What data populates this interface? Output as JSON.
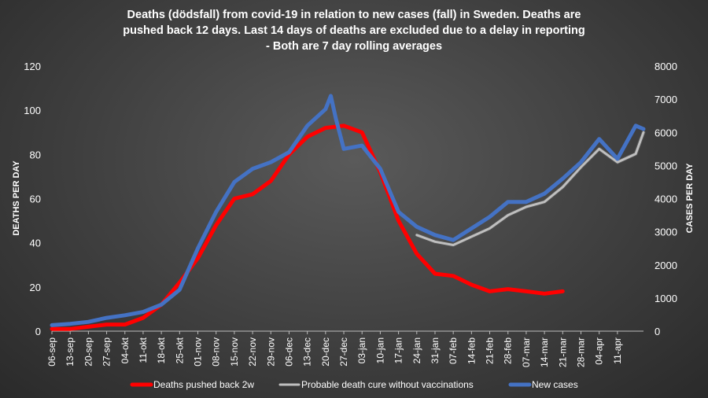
{
  "chart_data": {
    "type": "line",
    "title_lines": [
      "Deaths (dödsfall) from covid-19 in relation to new cases (fall) in Sweden. Deaths are",
      "pushed back 12 days. Last 14 days of deaths are excluded due to a delay in reporting",
      "- Both are 7 day rolling averages"
    ],
    "ylabel_left": "DEATHS PER DAY",
    "ylabel_right": "CASES PER DAY",
    "ylim_left": [
      0,
      120
    ],
    "ylim_right": [
      0,
      8000
    ],
    "yticks_left": [
      "0",
      "20",
      "40",
      "60",
      "80",
      "100",
      "120"
    ],
    "yticks_right": [
      "0",
      "1000",
      "2000",
      "3000",
      "4000",
      "5000",
      "6000",
      "7000",
      "8000"
    ],
    "xticks": [
      "06-sep",
      "13-sep",
      "20-sep",
      "27-sep",
      "04-okt",
      "11-okt",
      "18-okt",
      "25-okt",
      "01-nov",
      "08-nov",
      "15-nov",
      "22-nov",
      "29-nov",
      "06-dec",
      "13-dec",
      "20-dec",
      "27-dec",
      "03-jan",
      "10-jan",
      "17-jan",
      "24-jan",
      "31-jan",
      "07-feb",
      "14-feb",
      "21-feb",
      "28-feb",
      "07-mar",
      "14-mar",
      "21-mar",
      "28-mar",
      "04-apr",
      "11-apr"
    ],
    "grid": false,
    "legend_position": "bottom",
    "series": [
      {
        "name": "Deaths pushed back 2w",
        "axis": "left",
        "color": "#ff0000",
        "x": [
          0,
          7,
          14,
          21,
          28,
          35,
          42,
          49,
          56,
          63,
          70,
          77,
          84,
          91,
          98,
          105,
          112,
          119,
          126,
          133,
          140,
          147,
          154,
          161,
          168,
          175,
          182,
          189,
          196
        ],
        "y": [
          1,
          1,
          2,
          3,
          3,
          6,
          12,
          22,
          33,
          48,
          60,
          62,
          68,
          80,
          88,
          92,
          93,
          90,
          72,
          50,
          35,
          26,
          25,
          21,
          18,
          19,
          18,
          17,
          18
        ]
      },
      {
        "name": "Probable death cure without vaccinations",
        "axis": "right",
        "color": "#bfbfbf",
        "x": [
          140,
          147,
          154,
          161,
          168,
          175,
          182,
          189,
          196,
          203,
          210,
          217,
          224,
          227
        ],
        "y": [
          2900,
          2700,
          2600,
          2850,
          3100,
          3500,
          3750,
          3900,
          4350,
          4950,
          5500,
          5100,
          5350,
          6000
        ]
      },
      {
        "name": "New cases",
        "axis": "right",
        "color": "#4472c4",
        "x": [
          0,
          7,
          14,
          21,
          28,
          35,
          42,
          49,
          56,
          63,
          70,
          77,
          84,
          91,
          98,
          105,
          107,
          109,
          112,
          119,
          126,
          133,
          140,
          147,
          154,
          161,
          168,
          175,
          182,
          189,
          196,
          203,
          210,
          217,
          224,
          227
        ],
        "y": [
          180,
          220,
          280,
          400,
          480,
          580,
          800,
          1250,
          2500,
          3600,
          4500,
          4900,
          5100,
          5400,
          6200,
          6700,
          7100,
          6400,
          5500,
          5600,
          4900,
          3600,
          3150,
          2900,
          2750,
          3100,
          3450,
          3900,
          3900,
          4150,
          4600,
          5100,
          5800,
          5200,
          6200,
          6100
        ]
      }
    ]
  }
}
